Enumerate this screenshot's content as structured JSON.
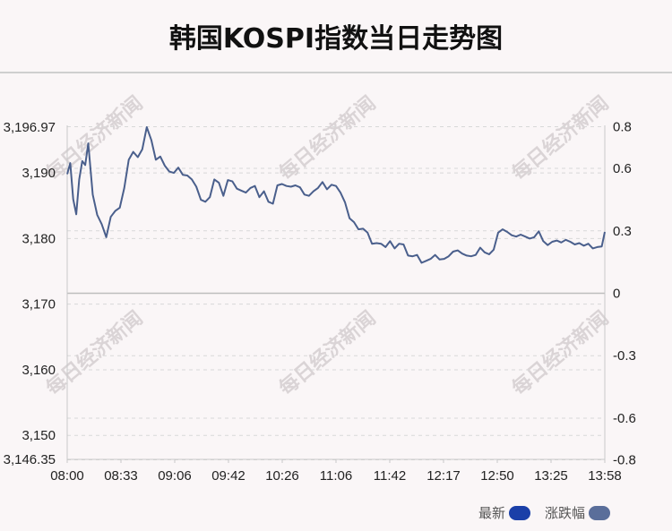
{
  "title": "韩国KOSPI指数当日走势图",
  "watermark": "每日经济新闻",
  "colors": {
    "line": "#4a5f8c",
    "latest_swatch": "#1a3fa8",
    "change_swatch": "#5a6e9a",
    "grid": "#d8d8d8",
    "axis_text": "#222"
  },
  "legend": [
    {
      "label": "最新",
      "color": "#1a3fa8"
    },
    {
      "label": "涨跌幅",
      "color": "#5a6e9a"
    }
  ],
  "chart_data": {
    "type": "line",
    "x_ticks": [
      "08:00",
      "08:33",
      "09:06",
      "09:42",
      "10:26",
      "11:06",
      "11:42",
      "12:17",
      "12:50",
      "13:25",
      "13:58"
    ],
    "y_left_ticks": [
      "3,196.97",
      "3,190",
      "3,180",
      "3,170",
      "3,160",
      "3,150",
      "3,146.35"
    ],
    "y_left_values": [
      3196.97,
      3190,
      3180,
      3170,
      3160,
      3150,
      3146.35
    ],
    "y_right_ticks": [
      "0.8",
      "0.6",
      "0.3",
      "0",
      "-0.3",
      "-0.6",
      "-0.8"
    ],
    "y_right_values": [
      0.8,
      0.6,
      0.3,
      0,
      -0.3,
      -0.6,
      -0.8
    ],
    "ylim": [
      3146.35,
      3196.97
    ],
    "base_value": 3171.66,
    "x_range": [
      0,
      358
    ],
    "legend_position": "bottom-right",
    "series": [
      {
        "name": "最新",
        "x": [
          0,
          2,
          4,
          6,
          8,
          10,
          12,
          14,
          17,
          20,
          23,
          26,
          29,
          32,
          35,
          38,
          41,
          44,
          47,
          50,
          53,
          56,
          59,
          62,
          65,
          68,
          71,
          74,
          77,
          80,
          83,
          86,
          89,
          92,
          95,
          98,
          101,
          104,
          107,
          110,
          113,
          116,
          119,
          122,
          125,
          128,
          131,
          134,
          137,
          140,
          143,
          146,
          149,
          152,
          155,
          158,
          161,
          164,
          167,
          170,
          173,
          176,
          179,
          182,
          185,
          188,
          191,
          194,
          197,
          200,
          203,
          206,
          209,
          212,
          215,
          218,
          221,
          224,
          227,
          230,
          233,
          236,
          239,
          242,
          245,
          248,
          251,
          254,
          257,
          260,
          263,
          266,
          269,
          272,
          275,
          278,
          281,
          284,
          287,
          290,
          293,
          296,
          299,
          302,
          305,
          308,
          311,
          314,
          317,
          320,
          323,
          326,
          329,
          332,
          335,
          338,
          341,
          344,
          347,
          350,
          353,
          356,
          358
        ],
        "values": [
          3189.8,
          3191.5,
          3186.0,
          3183.7,
          3189.0,
          3191.8,
          3191.2,
          3194.5,
          3186.7,
          3183.6,
          3182.2,
          3180.2,
          3183.3,
          3184.2,
          3184.7,
          3187.7,
          3192.0,
          3193.2,
          3192.4,
          3193.6,
          3196.97,
          3195.0,
          3192.0,
          3192.5,
          3191.1,
          3190.2,
          3190.0,
          3190.8,
          3189.7,
          3189.6,
          3189.0,
          3187.9,
          3185.9,
          3185.6,
          3186.3,
          3189.0,
          3188.5,
          3186.5,
          3188.9,
          3188.7,
          3187.6,
          3187.3,
          3187.0,
          3187.7,
          3188.0,
          3186.3,
          3187.2,
          3185.6,
          3185.3,
          3188.1,
          3188.3,
          3188.0,
          3187.9,
          3188.1,
          3187.8,
          3186.7,
          3186.5,
          3187.2,
          3187.7,
          3188.6,
          3187.5,
          3188.2,
          3188.0,
          3187.0,
          3185.5,
          3183.1,
          3182.5,
          3181.4,
          3181.5,
          3180.9,
          3179.2,
          3179.3,
          3179.2,
          3178.7,
          3179.6,
          3178.5,
          3179.2,
          3179.1,
          3177.4,
          3177.3,
          3177.5,
          3176.3,
          3176.6,
          3176.9,
          3177.5,
          3176.8,
          3176.9,
          3177.3,
          3178.0,
          3178.2,
          3177.7,
          3177.4,
          3177.3,
          3177.5,
          3178.6,
          3177.9,
          3177.6,
          3178.3,
          3180.9,
          3181.4,
          3181.0,
          3180.5,
          3180.3,
          3180.6,
          3180.3,
          3180.0,
          3180.2,
          3181.1,
          3179.6,
          3179.0,
          3179.5,
          3179.7,
          3179.4,
          3179.8,
          3179.5,
          3179.1,
          3179.3,
          3178.9,
          3179.2,
          3178.5,
          3178.7,
          3178.8,
          3181.0
        ]
      }
    ]
  }
}
